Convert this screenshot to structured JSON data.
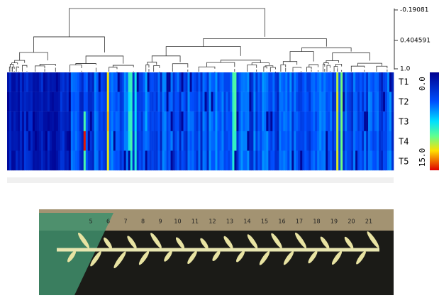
{
  "dendrogram": {
    "scale_labels": [
      "-0.19081",
      "0.404591",
      "1.0"
    ]
  },
  "heatmap": {
    "row_labels": [
      "T1",
      "T2",
      "T3",
      "T4",
      "T5"
    ],
    "colorbar_labels": [
      "0.0",
      "15.0"
    ]
  },
  "photo": {
    "ruler_labels": [
      "5",
      "6",
      "7",
      "8",
      "9",
      "10",
      "11",
      "12",
      "13",
      "14",
      "15",
      "16",
      "17",
      "18",
      "19",
      "20",
      "21"
    ]
  }
}
